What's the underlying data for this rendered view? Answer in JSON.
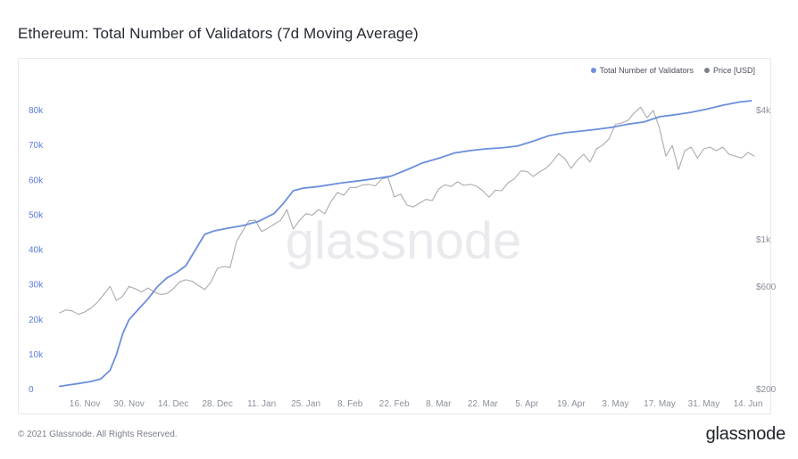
{
  "title": "Ethereum: Total Number of Validators (7d Moving Average)",
  "footer": {
    "copyright": "© 2021 Glassnode. All Rights Reserved.",
    "logo": "glassnode"
  },
  "watermark": "glassnode",
  "colors": {
    "validators": "#6b8fdc",
    "price": "#a9abb0",
    "left_axis": "#5b7bd6"
  },
  "chart_data": {
    "type": "line",
    "title": "Ethereum: Total Number of Validators (7d Moving Average)",
    "legend": {
      "placement": "top-right",
      "entries": [
        "Total Number of Validators",
        "Price [USD]"
      ]
    },
    "x_ticks": [
      "16. Nov",
      "30. Nov",
      "14. Dec",
      "28. Dec",
      "11. Jan",
      "25. Jan",
      "8. Feb",
      "22. Feb",
      "8. Mar",
      "22. Mar",
      "5. Apr",
      "19. Apr",
      "3. May",
      "17. May",
      "31. May",
      "14. Jun"
    ],
    "y_left": {
      "ticks": [
        "0",
        "10k",
        "20k",
        "30k",
        "40k",
        "50k",
        "60k",
        "70k",
        "80k"
      ],
      "range": [
        0,
        80000
      ],
      "label": ""
    },
    "y_right": {
      "ticks": [
        "$200",
        "$600",
        "$1k",
        "$4k"
      ],
      "scale": "log",
      "label": ""
    },
    "grid": false,
    "x_range": [
      "2020-11-08",
      "2021-06-17"
    ],
    "series": [
      {
        "name": "Total Number of Validators",
        "axis": "left",
        "points": [
          [
            "2020-11-08",
            900
          ],
          [
            "2020-11-11",
            1300
          ],
          [
            "2020-11-14",
            1700
          ],
          [
            "2020-11-18",
            2300
          ],
          [
            "2020-11-21",
            3000
          ],
          [
            "2020-11-24",
            5500
          ],
          [
            "2020-11-26",
            10000
          ],
          [
            "2020-11-28",
            16000
          ],
          [
            "2020-11-30",
            20000
          ],
          [
            "2020-12-03",
            23000
          ],
          [
            "2020-12-06",
            26000
          ],
          [
            "2020-12-09",
            29500
          ],
          [
            "2020-12-12",
            32000
          ],
          [
            "2020-12-15",
            33500
          ],
          [
            "2020-12-18",
            35500
          ],
          [
            "2020-12-21",
            40000
          ],
          [
            "2020-12-24",
            44500
          ],
          [
            "2020-12-27",
            45500
          ],
          [
            "2020-12-31",
            46200
          ],
          [
            "2021-01-05",
            47000
          ],
          [
            "2021-01-10",
            48200
          ],
          [
            "2021-01-15",
            50500
          ],
          [
            "2021-01-18",
            53500
          ],
          [
            "2021-01-21",
            57000
          ],
          [
            "2021-01-24",
            57700
          ],
          [
            "2021-01-29",
            58200
          ],
          [
            "2021-02-05",
            59200
          ],
          [
            "2021-02-12",
            60000
          ],
          [
            "2021-02-17",
            60600
          ],
          [
            "2021-02-21",
            61200
          ],
          [
            "2021-02-26",
            63000
          ],
          [
            "2021-03-03",
            65000
          ],
          [
            "2021-03-08",
            66300
          ],
          [
            "2021-03-13",
            67800
          ],
          [
            "2021-03-18",
            68500
          ],
          [
            "2021-03-23",
            69000
          ],
          [
            "2021-03-28",
            69300
          ],
          [
            "2021-04-02",
            69800
          ],
          [
            "2021-04-07",
            71200
          ],
          [
            "2021-04-12",
            72800
          ],
          [
            "2021-04-17",
            73600
          ],
          [
            "2021-04-22",
            74100
          ],
          [
            "2021-04-27",
            74600
          ],
          [
            "2021-05-02",
            75200
          ],
          [
            "2021-05-07",
            76100
          ],
          [
            "2021-05-12",
            76700
          ],
          [
            "2021-05-17",
            78200
          ],
          [
            "2021-05-22",
            78800
          ],
          [
            "2021-05-27",
            79500
          ],
          [
            "2021-06-01",
            80400
          ],
          [
            "2021-06-06",
            81500
          ],
          [
            "2021-06-11",
            82400
          ],
          [
            "2021-06-15",
            82800
          ]
        ]
      },
      {
        "name": "Price [USD]",
        "axis": "right",
        "points": [
          [
            "2020-11-08",
            455
          ],
          [
            "2020-11-10",
            470
          ],
          [
            "2020-11-12",
            465
          ],
          [
            "2020-11-14",
            448
          ],
          [
            "2020-11-16",
            460
          ],
          [
            "2020-11-18",
            480
          ],
          [
            "2020-11-20",
            510
          ],
          [
            "2020-11-22",
            555
          ],
          [
            "2020-11-24",
            605
          ],
          [
            "2020-11-26",
            520
          ],
          [
            "2020-11-28",
            545
          ],
          [
            "2020-11-30",
            605
          ],
          [
            "2020-12-02",
            590
          ],
          [
            "2020-12-04",
            570
          ],
          [
            "2020-12-06",
            595
          ],
          [
            "2020-12-08",
            570
          ],
          [
            "2020-12-10",
            555
          ],
          [
            "2020-12-12",
            560
          ],
          [
            "2020-12-14",
            590
          ],
          [
            "2020-12-16",
            635
          ],
          [
            "2020-12-18",
            650
          ],
          [
            "2020-12-20",
            640
          ],
          [
            "2020-12-22",
            610
          ],
          [
            "2020-12-24",
            585
          ],
          [
            "2020-12-26",
            635
          ],
          [
            "2020-12-28",
            735
          ],
          [
            "2020-12-30",
            750
          ],
          [
            "2021-01-01",
            740
          ],
          [
            "2021-01-03",
            975
          ],
          [
            "2021-01-05",
            1100
          ],
          [
            "2021-01-07",
            1225
          ],
          [
            "2021-01-09",
            1230
          ],
          [
            "2021-01-11",
            1090
          ],
          [
            "2021-01-13",
            1130
          ],
          [
            "2021-01-15",
            1180
          ],
          [
            "2021-01-17",
            1230
          ],
          [
            "2021-01-19",
            1380
          ],
          [
            "2021-01-21",
            1120
          ],
          [
            "2021-01-23",
            1230
          ],
          [
            "2021-01-25",
            1320
          ],
          [
            "2021-01-27",
            1300
          ],
          [
            "2021-01-29",
            1380
          ],
          [
            "2021-01-31",
            1320
          ],
          [
            "2021-02-02",
            1510
          ],
          [
            "2021-02-04",
            1660
          ],
          [
            "2021-02-06",
            1610
          ],
          [
            "2021-02-08",
            1750
          ],
          [
            "2021-02-10",
            1750
          ],
          [
            "2021-02-12",
            1800
          ],
          [
            "2021-02-14",
            1810
          ],
          [
            "2021-02-16",
            1780
          ],
          [
            "2021-02-18",
            1920
          ],
          [
            "2021-02-20",
            1950
          ],
          [
            "2021-02-22",
            1580
          ],
          [
            "2021-02-24",
            1630
          ],
          [
            "2021-02-26",
            1450
          ],
          [
            "2021-02-28",
            1420
          ],
          [
            "2021-03-02",
            1480
          ],
          [
            "2021-03-04",
            1540
          ],
          [
            "2021-03-06",
            1520
          ],
          [
            "2021-03-08",
            1720
          ],
          [
            "2021-03-10",
            1800
          ],
          [
            "2021-03-12",
            1770
          ],
          [
            "2021-03-14",
            1860
          ],
          [
            "2021-03-16",
            1790
          ],
          [
            "2021-03-18",
            1810
          ],
          [
            "2021-03-20",
            1780
          ],
          [
            "2021-03-22",
            1690
          ],
          [
            "2021-03-24",
            1580
          ],
          [
            "2021-03-26",
            1700
          ],
          [
            "2021-03-28",
            1690
          ],
          [
            "2021-03-30",
            1840
          ],
          [
            "2021-04-01",
            1920
          ],
          [
            "2021-04-03",
            2090
          ],
          [
            "2021-04-05",
            2080
          ],
          [
            "2021-04-07",
            1970
          ],
          [
            "2021-04-09",
            2070
          ],
          [
            "2021-04-11",
            2150
          ],
          [
            "2021-04-13",
            2300
          ],
          [
            "2021-04-15",
            2520
          ],
          [
            "2021-04-17",
            2380
          ],
          [
            "2021-04-19",
            2150
          ],
          [
            "2021-04-21",
            2350
          ],
          [
            "2021-04-23",
            2500
          ],
          [
            "2021-04-25",
            2300
          ],
          [
            "2021-04-27",
            2650
          ],
          [
            "2021-04-29",
            2760
          ],
          [
            "2021-05-01",
            2950
          ],
          [
            "2021-05-03",
            3450
          ],
          [
            "2021-05-05",
            3500
          ],
          [
            "2021-05-07",
            3600
          ],
          [
            "2021-05-09",
            3900
          ],
          [
            "2021-05-11",
            4150
          ],
          [
            "2021-05-13",
            3700
          ],
          [
            "2021-05-15",
            4000
          ],
          [
            "2021-05-17",
            3300
          ],
          [
            "2021-05-19",
            2450
          ],
          [
            "2021-05-21",
            2750
          ],
          [
            "2021-05-23",
            2120
          ],
          [
            "2021-05-25",
            2600
          ],
          [
            "2021-05-27",
            2700
          ],
          [
            "2021-05-29",
            2400
          ],
          [
            "2021-05-31",
            2650
          ],
          [
            "2021-06-02",
            2700
          ],
          [
            "2021-06-04",
            2600
          ],
          [
            "2021-06-06",
            2700
          ],
          [
            "2021-06-08",
            2500
          ],
          [
            "2021-06-10",
            2450
          ],
          [
            "2021-06-12",
            2400
          ],
          [
            "2021-06-14",
            2550
          ],
          [
            "2021-06-16",
            2450
          ]
        ]
      }
    ]
  }
}
